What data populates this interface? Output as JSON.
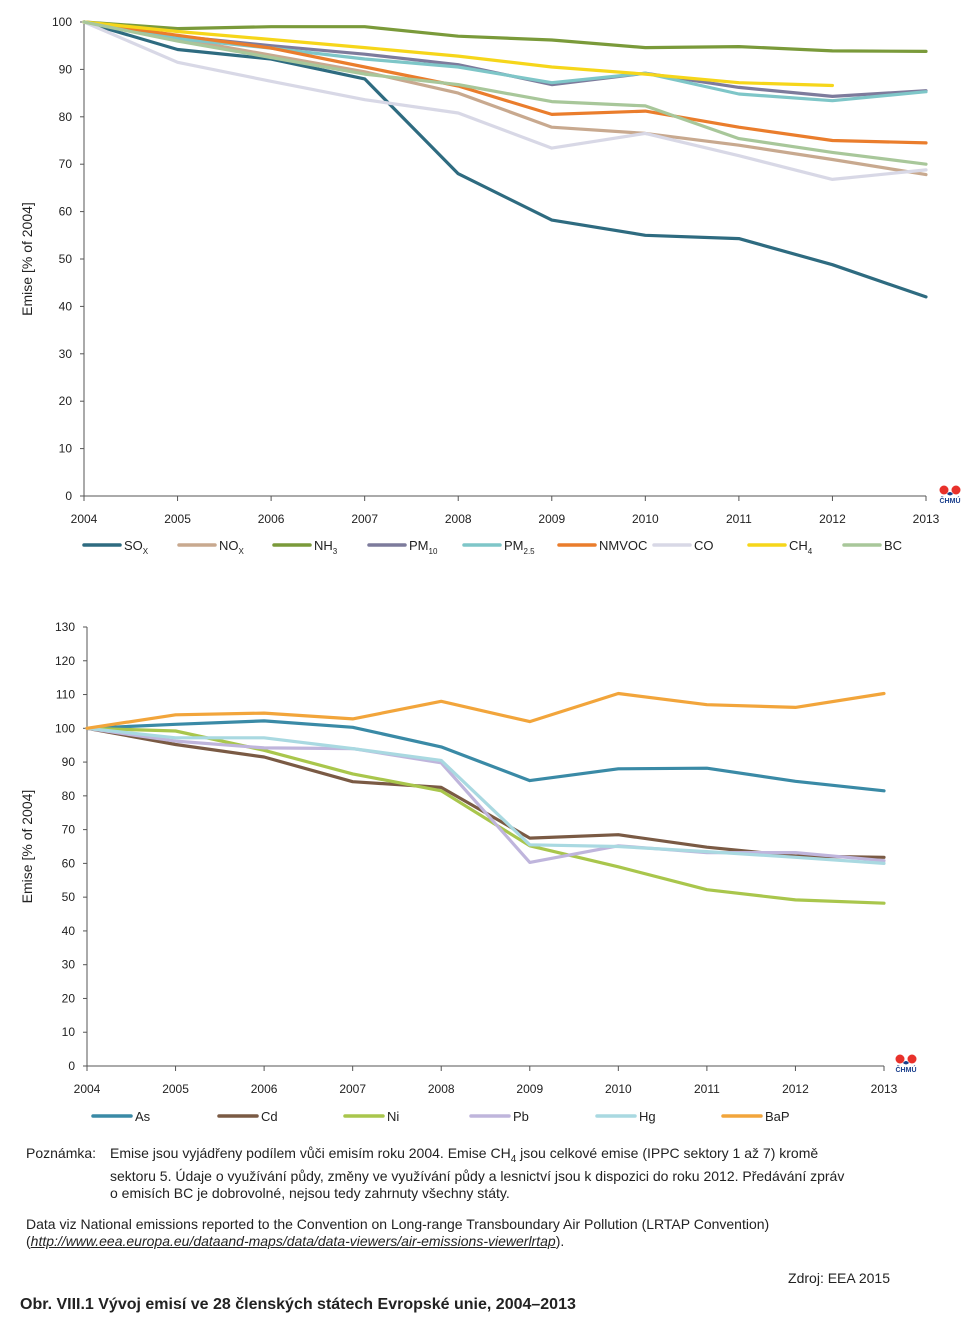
{
  "chart_data": [
    {
      "type": "line",
      "title": "",
      "ylabel": "Emise [% of 2004]",
      "xlabel": "",
      "ylim": [
        0,
        100
      ],
      "yticks": [
        0,
        10,
        20,
        30,
        40,
        50,
        60,
        70,
        80,
        90,
        100
      ],
      "x": [
        "2004",
        "2005",
        "2006",
        "2007",
        "2008",
        "2009",
        "2010",
        "2011",
        "2012",
        "2013"
      ],
      "legend_position": "bottom",
      "series": [
        {
          "name": "SO",
          "sub": "X",
          "color": "#2e6b80",
          "values": [
            100,
            94.2,
            92.2,
            88,
            68,
            58.2,
            55,
            54.3,
            48.8,
            42
          ]
        },
        {
          "name": "NO",
          "sub": "X",
          "color": "#c8a98f",
          "values": [
            100,
            96.5,
            93,
            89.5,
            85,
            77.8,
            76.5,
            74,
            71,
            67.8
          ]
        },
        {
          "name": "NH",
          "sub": "3",
          "color": "#7a9a3a",
          "values": [
            100,
            98.6,
            99,
            99,
            97,
            96.2,
            94.6,
            94.8,
            93.9,
            93.8
          ]
        },
        {
          "name": "PM",
          "sub": "10",
          "color": "#7d7b9c",
          "values": [
            100,
            97,
            95,
            93.2,
            91,
            86.8,
            89.2,
            86.2,
            84.3,
            85.5
          ]
        },
        {
          "name": "PM",
          "sub": "2.5",
          "color": "#7ec6c8",
          "values": [
            100,
            96.5,
            94.5,
            92.2,
            90.5,
            87.2,
            89.2,
            84.8,
            83.4,
            85.3
          ]
        },
        {
          "name": "NMVOC",
          "sub": "",
          "color": "#ea7d2c",
          "values": [
            100,
            97.2,
            94.5,
            90.5,
            86.5,
            80.5,
            81.2,
            77.8,
            75,
            74.5
          ]
        },
        {
          "name": "CO",
          "sub": "",
          "color": "#d8d8e6",
          "values": [
            100,
            91.5,
            87.5,
            83.6,
            80.8,
            73.4,
            76.5,
            71.8,
            66.8,
            68.8
          ]
        },
        {
          "name": "CH",
          "sub": "4",
          "color": "#f6d61a",
          "values": [
            100,
            98,
            96.3,
            94.6,
            92.8,
            90.5,
            89,
            87.2,
            86.6,
            null
          ]
        },
        {
          "name": "BC",
          "sub": "",
          "color": "#a8c79a",
          "values": [
            100,
            96,
            92.5,
            89,
            86.8,
            83.2,
            82.3,
            75.4,
            72.5,
            70
          ]
        }
      ]
    },
    {
      "type": "line",
      "title": "",
      "ylabel": "Emise [% of 2004]",
      "xlabel": "",
      "ylim": [
        0,
        130
      ],
      "yticks": [
        0,
        10,
        20,
        30,
        40,
        50,
        60,
        70,
        80,
        90,
        100,
        110,
        120,
        130
      ],
      "x": [
        "2004",
        "2005",
        "2006",
        "2007",
        "2008",
        "2009",
        "2010",
        "2011",
        "2012",
        "2013"
      ],
      "legend_position": "bottom",
      "series": [
        {
          "name": "As",
          "sub": "",
          "color": "#3a8aa6",
          "values": [
            100,
            101.2,
            102.2,
            100.3,
            94.5,
            84.5,
            88,
            88.2,
            84.3,
            81.5
          ]
        },
        {
          "name": "Cd",
          "sub": "",
          "color": "#7a5a44",
          "values": [
            100,
            95.2,
            91.5,
            84.2,
            82.5,
            67.5,
            68.5,
            64.8,
            62.2,
            61.8
          ]
        },
        {
          "name": "Ni",
          "sub": "",
          "color": "#a9c64c",
          "values": [
            100,
            99.2,
            93.5,
            86.5,
            81.5,
            65.2,
            59,
            52.2,
            49.2,
            48.2
          ]
        },
        {
          "name": "Pb",
          "sub": "",
          "color": "#bfb5dc",
          "values": [
            100,
            96.2,
            94.2,
            94,
            89.8,
            60.3,
            65.2,
            63.2,
            63.2,
            60.8
          ]
        },
        {
          "name": "Hg",
          "sub": "",
          "color": "#a9d9e1",
          "values": [
            100,
            97.2,
            97.2,
            94,
            90.5,
            65.5,
            65,
            63.5,
            61.8,
            60
          ]
        },
        {
          "name": "BaP",
          "sub": "",
          "color": "#f2a53b",
          "values": [
            100,
            104,
            104.5,
            102.8,
            108,
            102,
            110.3,
            107,
            106.2,
            110.3
          ]
        }
      ]
    }
  ],
  "logo": {
    "text": "ČHMÚ",
    "red": "#e8312b",
    "blue": "#1a3f8c"
  },
  "note": {
    "label": "Poznámka:",
    "line1_a": "Emise jsou vyjádřeny podílem vůči emisím roku 2004. Emise CH",
    "line1_sub": "4",
    "line1_b": " jsou celkové emise (IPPC sektory 1 až 7) kromě",
    "line2": "sektoru 5. Údaje o využívání půdy, změny ve využívání půdy a lesnictví jsou k dispozici do roku 2012. Předávání zpráv",
    "line3": "o emisích BC je dobrovolné, nejsou tedy zahrnuty všechny státy."
  },
  "data_source": {
    "text": "Data viz National emissions reported to the Convention on Long-range Transboundary Air Pollution (LRTAP Convention)",
    "open": "(",
    "url": "http://www.eea.europa.eu/dataand-maps/data/data-viewers/air-emissions-viewerlrtap",
    "close": ")."
  },
  "source_credit": "Zdroj: EEA 2015",
  "caption": "Obr. VIII.1  Vývoj emisí ve 28 členských státech Evropské unie, 2004–2013"
}
